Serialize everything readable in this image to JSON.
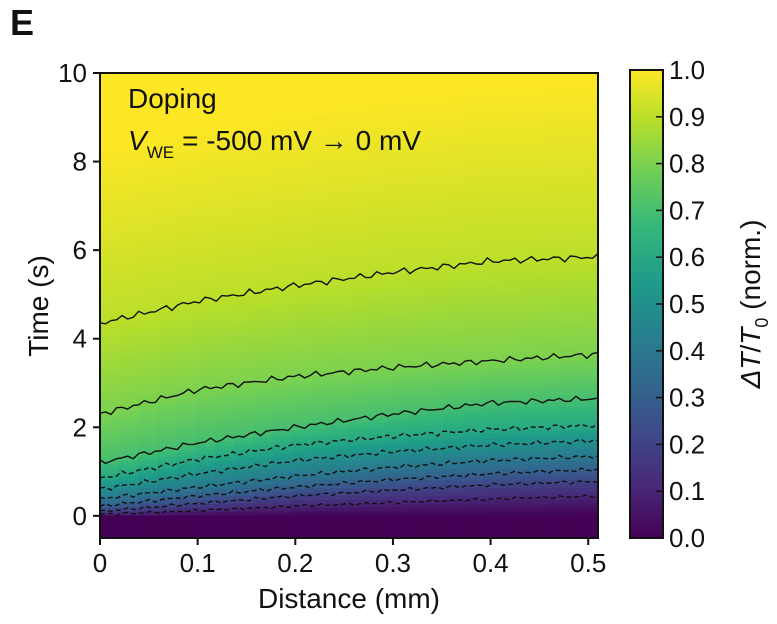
{
  "panel_label": "E",
  "chart_data": {
    "type": "heatmap",
    "title": "",
    "xlabel": "Distance (mm)",
    "ylabel": "Time (s)",
    "xlim": [
      0,
      0.51
    ],
    "ylim": [
      -0.5,
      10
    ],
    "x_ticks": [
      "0",
      "0.1",
      "0.2",
      "0.3",
      "0.4",
      "0.5"
    ],
    "y_ticks": [
      "0",
      "2",
      "4",
      "6",
      "8",
      "10"
    ],
    "annotation": {
      "line1": "Doping",
      "line2_var": "V",
      "line2_sub": "WE",
      "line2_rest": "= -500 mV → 0 mV"
    },
    "colorbar": {
      "label_delta": "Δ",
      "label_T": "T",
      "label_slash": "/",
      "label_T0": "T",
      "label_sub0": "0",
      "label_rest": " (norm.)",
      "min": 0.0,
      "max": 1.0,
      "ticks": [
        "0.0",
        "0.1",
        "0.2",
        "0.3",
        "0.4",
        "0.5",
        "0.6",
        "0.7",
        "0.8",
        "0.9",
        "1.0"
      ],
      "colormap": "viridis",
      "colormap_stops": [
        "#440154",
        "#482878",
        "#3e4989",
        "#31688e",
        "#26828e",
        "#1f9e89",
        "#35b779",
        "#6ece58",
        "#b5de2b",
        "#fde725"
      ]
    },
    "contours": [
      {
        "level": 0.1,
        "x": [
          0,
          0.1,
          0.2,
          0.3,
          0.4,
          0.51
        ],
        "time": [
          0.03,
          0.12,
          0.22,
          0.3,
          0.38,
          0.45
        ]
      },
      {
        "level": 0.2,
        "x": [
          0,
          0.1,
          0.2,
          0.3,
          0.4,
          0.51
        ],
        "time": [
          0.1,
          0.28,
          0.45,
          0.58,
          0.7,
          0.78
        ]
      },
      {
        "level": 0.3,
        "x": [
          0,
          0.1,
          0.2,
          0.3,
          0.4,
          0.51
        ],
        "time": [
          0.22,
          0.45,
          0.65,
          0.82,
          0.95,
          1.05
        ]
      },
      {
        "level": 0.4,
        "x": [
          0,
          0.1,
          0.2,
          0.3,
          0.4,
          0.51
        ],
        "time": [
          0.38,
          0.65,
          0.9,
          1.1,
          1.25,
          1.35
        ]
      },
      {
        "level": 0.5,
        "x": [
          0,
          0.1,
          0.2,
          0.3,
          0.4,
          0.51
        ],
        "time": [
          0.6,
          0.95,
          1.25,
          1.45,
          1.6,
          1.7
        ]
      },
      {
        "level": 0.6,
        "x": [
          0,
          0.1,
          0.2,
          0.3,
          0.4,
          0.51
        ],
        "time": [
          0.85,
          1.28,
          1.6,
          1.8,
          1.95,
          2.05
        ]
      },
      {
        "level": 0.7,
        "x": [
          0,
          0.1,
          0.2,
          0.3,
          0.4,
          0.51
        ],
        "time": [
          1.2,
          1.65,
          2.0,
          2.3,
          2.55,
          2.65
        ]
      },
      {
        "level": 0.8,
        "x": [
          0,
          0.1,
          0.2,
          0.3,
          0.4,
          0.51
        ],
        "time": [
          2.3,
          2.85,
          3.15,
          3.35,
          3.5,
          3.65
        ]
      },
      {
        "level": 0.9,
        "x": [
          0,
          0.1,
          0.2,
          0.3,
          0.4,
          0.51
        ],
        "time": [
          4.35,
          4.85,
          5.2,
          5.5,
          5.75,
          5.85
        ]
      }
    ]
  }
}
